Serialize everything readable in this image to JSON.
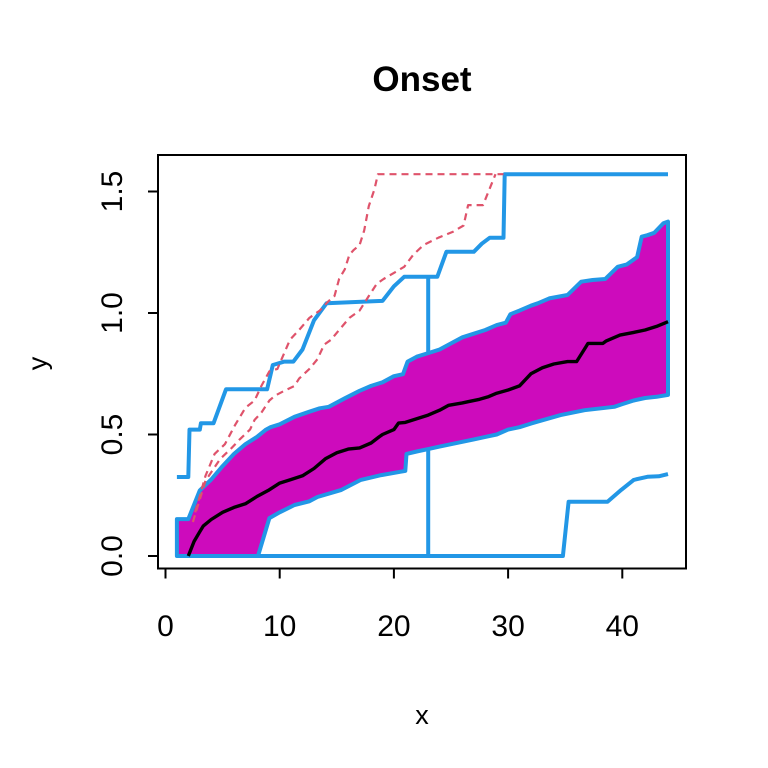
{
  "chart_data": {
    "type": "line",
    "title": "Onset",
    "xlabel": "x",
    "ylabel": "y",
    "xlim": [
      -0.6,
      45.5
    ],
    "ylim": [
      -0.05,
      1.65
    ],
    "x_ticks": [
      "0",
      "10",
      "20",
      "30",
      "40"
    ],
    "x_tick_values": [
      0,
      10,
      20,
      30,
      40
    ],
    "y_ticks": [
      "0.0",
      "0.5",
      "1.0",
      "1.5"
    ],
    "y_tick_values": [
      0,
      0.5,
      1.0,
      1.5
    ],
    "grid": "off",
    "legend": "none",
    "colors": {
      "envelope_blue": "#2297E6",
      "band_fill_magenta": "#CD0BBC",
      "extreme_red": "#DF536B",
      "median_black": "#000000",
      "box": "#000000"
    },
    "series": [
      {
        "name": "outer-envelope-upper",
        "role": "upper simulation envelope (blue step line, saturates at pi/2)",
        "color": "#2297E6",
        "width": 4,
        "dash": null,
        "points": [
          [
            1,
            0.325
          ],
          [
            2,
            0.325
          ],
          [
            2.1,
            0.52
          ],
          [
            3,
            0.52
          ],
          [
            3.1,
            0.546
          ],
          [
            4.2,
            0.546
          ],
          [
            5.3,
            0.686
          ],
          [
            8.9,
            0.686
          ],
          [
            9.4,
            0.786
          ],
          [
            9.7,
            0.79
          ],
          [
            10.4,
            0.8
          ],
          [
            11.2,
            0.8
          ],
          [
            12,
            0.85
          ],
          [
            13,
            0.97
          ],
          [
            14.1,
            1.04
          ],
          [
            19,
            1.05
          ],
          [
            20,
            1.11
          ],
          [
            20.9,
            1.149
          ],
          [
            23.8,
            1.149
          ],
          [
            24.6,
            1.252
          ],
          [
            27,
            1.252
          ],
          [
            27.7,
            1.285
          ],
          [
            28.4,
            1.31
          ],
          [
            29.6,
            1.31
          ],
          [
            29.7,
            1.571
          ],
          [
            44,
            1.571
          ]
        ]
      },
      {
        "name": "outer-envelope-lower",
        "role": "lower simulation envelope (blue step line along y=0 then rising)",
        "color": "#2297E6",
        "width": 4,
        "dash": null,
        "points": [
          [
            1,
            0
          ],
          [
            34.8,
            0
          ],
          [
            35.3,
            0.223
          ],
          [
            38.7,
            0.223
          ],
          [
            39.9,
            0.272
          ],
          [
            41,
            0.313
          ],
          [
            42.2,
            0.326
          ],
          [
            43.2,
            0.328
          ],
          [
            44,
            0.337
          ]
        ]
      },
      {
        "name": "drop-line-x23",
        "role": "vertical blue segment at x=23 from 0 up to upper envelope",
        "color": "#2297E6",
        "width": 4,
        "dash": null,
        "points": [
          [
            23,
            0
          ],
          [
            23,
            1.149
          ]
        ]
      },
      {
        "name": "inner-band",
        "role": "central confidence band, magenta fill with blue border",
        "type": "band",
        "fill": "#CD0BBC",
        "stroke": "#2297E6",
        "width": 4,
        "upper": [
          [
            1,
            0.152
          ],
          [
            2,
            0.152
          ],
          [
            3,
            0.27
          ],
          [
            4,
            0.315
          ],
          [
            5,
            0.37
          ],
          [
            6,
            0.42
          ],
          [
            7,
            0.46
          ],
          [
            8,
            0.49
          ],
          [
            8.8,
            0.52
          ],
          [
            9.2,
            0.53
          ],
          [
            10,
            0.542
          ],
          [
            11.3,
            0.573
          ],
          [
            12.6,
            0.594
          ],
          [
            13.5,
            0.608
          ],
          [
            14.3,
            0.614
          ],
          [
            15.7,
            0.649
          ],
          [
            17,
            0.68
          ],
          [
            18,
            0.7
          ],
          [
            19,
            0.715
          ],
          [
            20,
            0.74
          ],
          [
            20.8,
            0.748
          ],
          [
            21.2,
            0.8
          ],
          [
            22,
            0.82
          ],
          [
            23,
            0.835
          ],
          [
            24,
            0.85
          ],
          [
            25,
            0.875
          ],
          [
            26,
            0.9
          ],
          [
            27,
            0.915
          ],
          [
            28,
            0.93
          ],
          [
            29,
            0.95
          ],
          [
            29.8,
            0.96
          ],
          [
            30.2,
            0.995
          ],
          [
            31,
            1.01
          ],
          [
            32,
            1.03
          ],
          [
            32.6,
            1.04
          ],
          [
            33.6,
            1.06
          ],
          [
            35.2,
            1.074
          ],
          [
            36.4,
            1.129
          ],
          [
            37.4,
            1.136
          ],
          [
            38.5,
            1.14
          ],
          [
            39.6,
            1.19
          ],
          [
            40.4,
            1.2
          ],
          [
            41.3,
            1.23
          ],
          [
            41.7,
            1.314
          ],
          [
            42.2,
            1.32
          ],
          [
            42.8,
            1.33
          ],
          [
            43.6,
            1.369
          ],
          [
            44,
            1.376
          ]
        ],
        "lower": [
          [
            1,
            0
          ],
          [
            8.1,
            0
          ],
          [
            9.1,
            0.156
          ],
          [
            10,
            0.18
          ],
          [
            11.3,
            0.21
          ],
          [
            12.6,
            0.225
          ],
          [
            13.3,
            0.243
          ],
          [
            15.4,
            0.272
          ],
          [
            17.1,
            0.313
          ],
          [
            18.9,
            0.333
          ],
          [
            20.6,
            0.347
          ],
          [
            21,
            0.35
          ],
          [
            21.1,
            0.42
          ],
          [
            22,
            0.43
          ],
          [
            23,
            0.44
          ],
          [
            24,
            0.45
          ],
          [
            25,
            0.46
          ],
          [
            26,
            0.47
          ],
          [
            27,
            0.48
          ],
          [
            28,
            0.49
          ],
          [
            29,
            0.5
          ],
          [
            30,
            0.52
          ],
          [
            31,
            0.53
          ],
          [
            32,
            0.545
          ],
          [
            32.6,
            0.553
          ],
          [
            34.6,
            0.58
          ],
          [
            36.7,
            0.6
          ],
          [
            39.3,
            0.614
          ],
          [
            40,
            0.625
          ],
          [
            41,
            0.64
          ],
          [
            42,
            0.65
          ],
          [
            43,
            0.655
          ],
          [
            44,
            0.663
          ]
        ]
      },
      {
        "name": "median-curve",
        "role": "central black estimate curve",
        "color": "#000000",
        "width": 3.4,
        "dash": null,
        "points": [
          [
            2,
            0
          ],
          [
            2.5,
            0.06
          ],
          [
            3,
            0.1
          ],
          [
            3.3,
            0.123
          ],
          [
            4,
            0.15
          ],
          [
            5,
            0.18
          ],
          [
            6,
            0.2
          ],
          [
            7,
            0.215
          ],
          [
            8,
            0.245
          ],
          [
            9,
            0.27
          ],
          [
            10,
            0.3
          ],
          [
            11,
            0.315
          ],
          [
            12,
            0.33
          ],
          [
            13,
            0.36
          ],
          [
            14,
            0.4
          ],
          [
            15,
            0.425
          ],
          [
            16,
            0.44
          ],
          [
            17,
            0.445
          ],
          [
            18,
            0.465
          ],
          [
            18.7,
            0.49
          ],
          [
            19,
            0.5
          ],
          [
            20,
            0.52
          ],
          [
            20.4,
            0.547
          ],
          [
            21,
            0.55
          ],
          [
            22,
            0.565
          ],
          [
            23,
            0.58
          ],
          [
            24,
            0.6
          ],
          [
            24.8,
            0.62
          ],
          [
            26,
            0.63
          ],
          [
            26.5,
            0.635
          ],
          [
            27.5,
            0.645
          ],
          [
            28.3,
            0.656
          ],
          [
            29,
            0.67
          ],
          [
            30,
            0.683
          ],
          [
            31,
            0.7
          ],
          [
            32,
            0.75
          ],
          [
            33,
            0.775
          ],
          [
            34,
            0.79
          ],
          [
            35.2,
            0.8
          ],
          [
            36,
            0.8
          ],
          [
            36.8,
            0.86
          ],
          [
            37,
            0.875
          ],
          [
            38.3,
            0.875
          ],
          [
            38.6,
            0.885
          ],
          [
            39.8,
            0.909
          ],
          [
            41,
            0.92
          ],
          [
            42,
            0.93
          ],
          [
            43,
            0.945
          ],
          [
            44,
            0.964
          ]
        ]
      },
      {
        "name": "extreme-path-1",
        "role": "red dashed trajectory reaching pi/2 near x=19",
        "color": "#DF536B",
        "width": 2.2,
        "dash": "7,5",
        "points": [
          [
            2.6,
            0.18
          ],
          [
            3.5,
            0.33
          ],
          [
            4.3,
            0.42
          ],
          [
            5.2,
            0.46
          ],
          [
            6.1,
            0.54
          ],
          [
            7,
            0.61
          ],
          [
            7.8,
            0.64
          ],
          [
            8.4,
            0.7
          ],
          [
            9.1,
            0.76
          ],
          [
            9.8,
            0.77
          ],
          [
            10.9,
            0.89
          ],
          [
            11.7,
            0.93
          ],
          [
            12.6,
            0.98
          ],
          [
            13.5,
            1.01
          ],
          [
            14.3,
            1.05
          ],
          [
            14.8,
            1.07
          ],
          [
            15.2,
            1.14
          ],
          [
            15.7,
            1.18
          ],
          [
            16.1,
            1.24
          ],
          [
            16.5,
            1.26
          ],
          [
            17,
            1.28
          ],
          [
            17.4,
            1.34
          ],
          [
            17.8,
            1.44
          ],
          [
            18.3,
            1.51
          ],
          [
            18.6,
            1.571
          ],
          [
            29.6,
            1.571
          ]
        ]
      },
      {
        "name": "extreme-path-2",
        "role": "red dashed trajectory reaching pi/2 near x=29",
        "color": "#DF536B",
        "width": 2.2,
        "dash": "7,5",
        "points": [
          [
            2.4,
            0.14
          ],
          [
            3.5,
            0.31
          ],
          [
            4.8,
            0.4
          ],
          [
            5.7,
            0.44
          ],
          [
            6.5,
            0.48
          ],
          [
            7.4,
            0.52
          ],
          [
            7.8,
            0.56
          ],
          [
            8.4,
            0.59
          ],
          [
            9.1,
            0.64
          ],
          [
            9.6,
            0.66
          ],
          [
            10.4,
            0.68
          ],
          [
            11.3,
            0.7
          ],
          [
            11.7,
            0.73
          ],
          [
            12.6,
            0.77
          ],
          [
            13.3,
            0.81
          ],
          [
            13.9,
            0.87
          ],
          [
            14.5,
            0.89
          ],
          [
            15.2,
            0.93
          ],
          [
            16.1,
            0.98
          ],
          [
            17,
            1.01
          ],
          [
            17.8,
            1.07
          ],
          [
            18.5,
            1.12
          ],
          [
            19.1,
            1.14
          ],
          [
            20,
            1.165
          ],
          [
            20.9,
            1.19
          ],
          [
            21.7,
            1.24
          ],
          [
            22.6,
            1.28
          ],
          [
            23.9,
            1.31
          ],
          [
            25.2,
            1.335
          ],
          [
            26.1,
            1.36
          ],
          [
            26.5,
            1.444
          ],
          [
            27.8,
            1.444
          ],
          [
            28.9,
            1.571
          ]
        ]
      }
    ]
  }
}
